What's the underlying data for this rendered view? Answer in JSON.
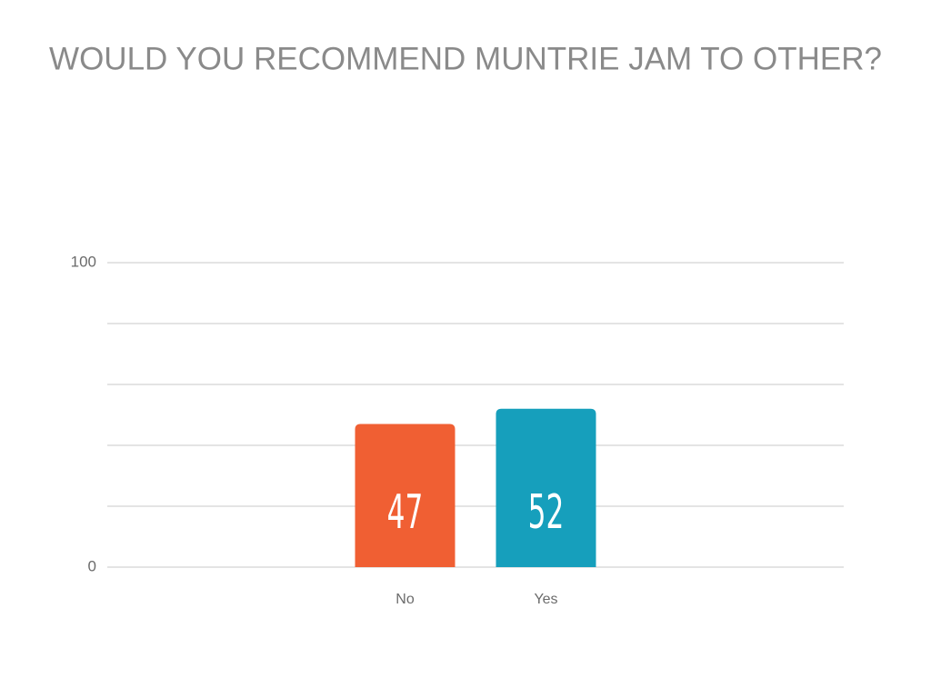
{
  "chart_data": {
    "type": "bar",
    "title": "WOULD YOU RECOMMEND MUNTRIE JAM TO OTHER?",
    "categories": [
      "No",
      "Yes"
    ],
    "values": [
      47,
      52
    ],
    "colors": [
      "#f05f33",
      "#169fbc"
    ],
    "ylim": [
      0,
      100
    ],
    "yticks": [
      0,
      100
    ],
    "minor_yticks": [
      20,
      40,
      60,
      80
    ],
    "grid": true
  }
}
